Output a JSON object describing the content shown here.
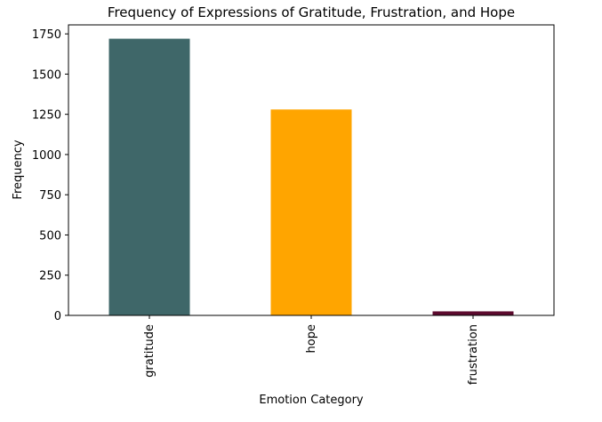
{
  "chart_data": {
    "type": "bar",
    "title": "Frequency of Expressions of Gratitude, Frustration, and Hope",
    "xlabel": "Emotion Category",
    "ylabel": "Frequency",
    "categories": [
      "gratitude",
      "hope",
      "frustration"
    ],
    "values": [
      1720,
      1280,
      25
    ],
    "colors": [
      "#3f6769",
      "#ffa500",
      "#5c0a2e"
    ],
    "ylim": [
      0,
      1806
    ],
    "yticks": [
      "0",
      "250",
      "500",
      "750",
      "1000",
      "1250",
      "1500",
      "1750"
    ],
    "grid": false,
    "legend": false
  }
}
